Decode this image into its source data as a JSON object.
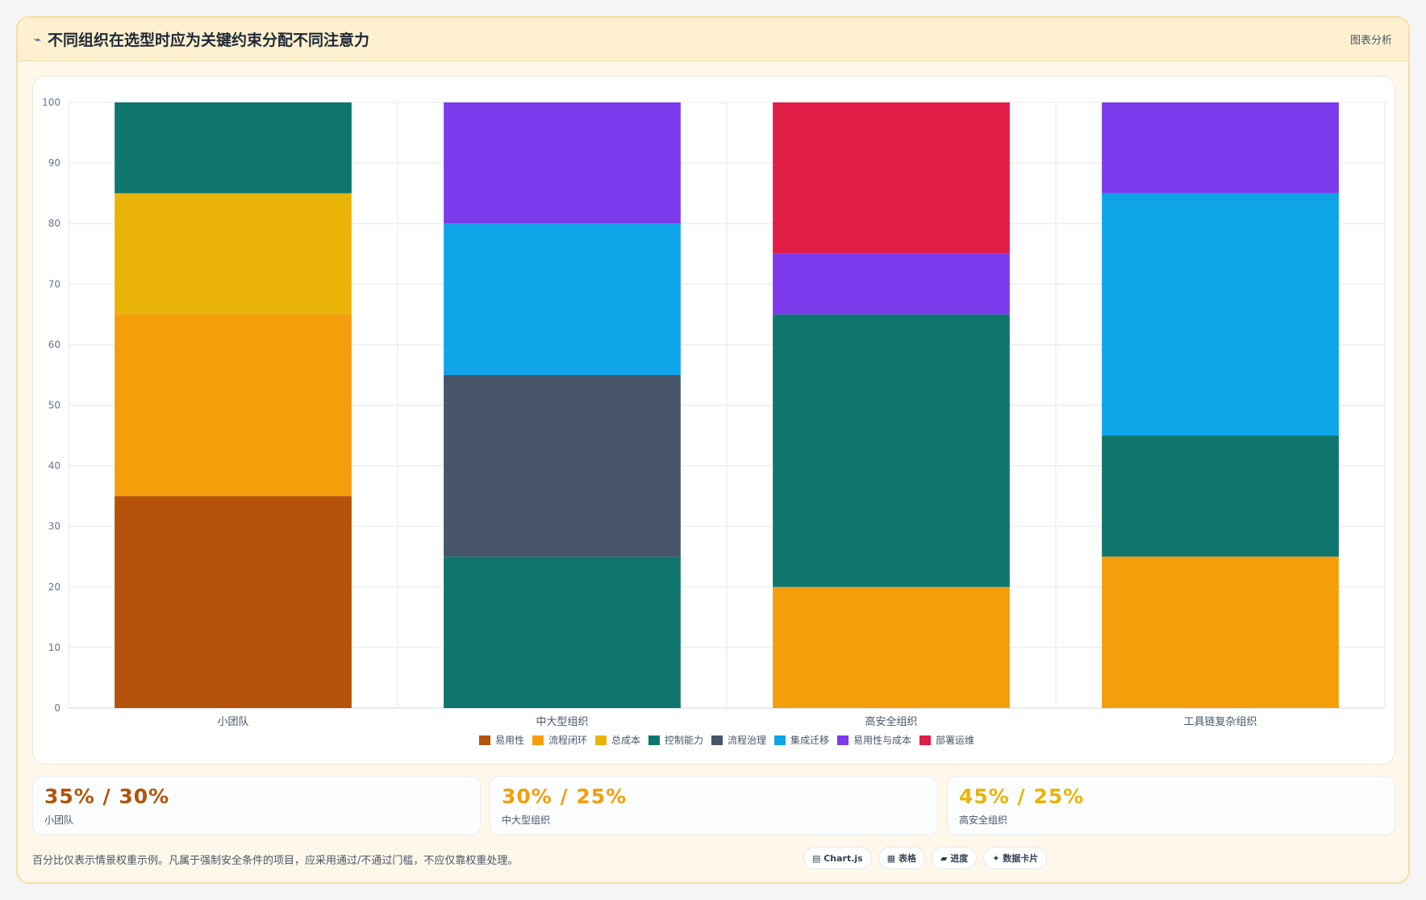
{
  "header": {
    "icon": "sparkle-icon",
    "title": "不同组织在选型时应为关键约束分配不同注意力",
    "tag": "图表分析"
  },
  "chart_data": {
    "type": "bar",
    "stacked": true,
    "categories": [
      "小团队",
      "中大型组织",
      "高安全组织",
      "工具链复杂组织"
    ],
    "ylim": [
      0,
      100
    ],
    "yticks": [
      0,
      10,
      20,
      30,
      40,
      50,
      60,
      70,
      80,
      90,
      100
    ],
    "grid": true,
    "legend_position": "bottom",
    "series": [
      {
        "name": "易用性",
        "color": "#b45309",
        "values": [
          35,
          0,
          0,
          0
        ]
      },
      {
        "name": "流程闭环",
        "color": "#f59e0b",
        "values": [
          30,
          0,
          20,
          25
        ]
      },
      {
        "name": "总成本",
        "color": "#eab308",
        "values": [
          20,
          0,
          0,
          0
        ]
      },
      {
        "name": "控制能力",
        "color": "#0f766e",
        "values": [
          15,
          25,
          45,
          20
        ]
      },
      {
        "name": "流程治理",
        "color": "#475569",
        "values": [
          0,
          30,
          0,
          0
        ]
      },
      {
        "name": "集成迁移",
        "color": "#0ea5e9",
        "values": [
          0,
          25,
          0,
          40
        ]
      },
      {
        "name": "易用性与成本",
        "color": "#7c3aed",
        "values": [
          0,
          20,
          10,
          15
        ]
      },
      {
        "name": "部署运维",
        "color": "#e11d48",
        "values": [
          0,
          0,
          25,
          0
        ]
      }
    ]
  },
  "kpis": [
    {
      "value": "35% / 30%",
      "label": "小团队",
      "color": "#b45309"
    },
    {
      "value": "30% / 25%",
      "label": "中大型组织",
      "color": "#f59e0b"
    },
    {
      "value": "45% / 25%",
      "label": "高安全组织",
      "color": "#eab308"
    }
  ],
  "footer": {
    "note": "百分比仅表示情景权重示例。凡属于强制安全条件的项目，应采用通过/不通过门槛，不应仅靠权重处理。",
    "chips": [
      {
        "icon": "chart-icon",
        "label": "▤ Chart.js"
      },
      {
        "icon": "table-icon",
        "label": "▦ 表格"
      },
      {
        "icon": "progress-icon",
        "label": "▰ 进度"
      },
      {
        "icon": "card-icon",
        "label": "✦ 数据卡片"
      }
    ]
  }
}
